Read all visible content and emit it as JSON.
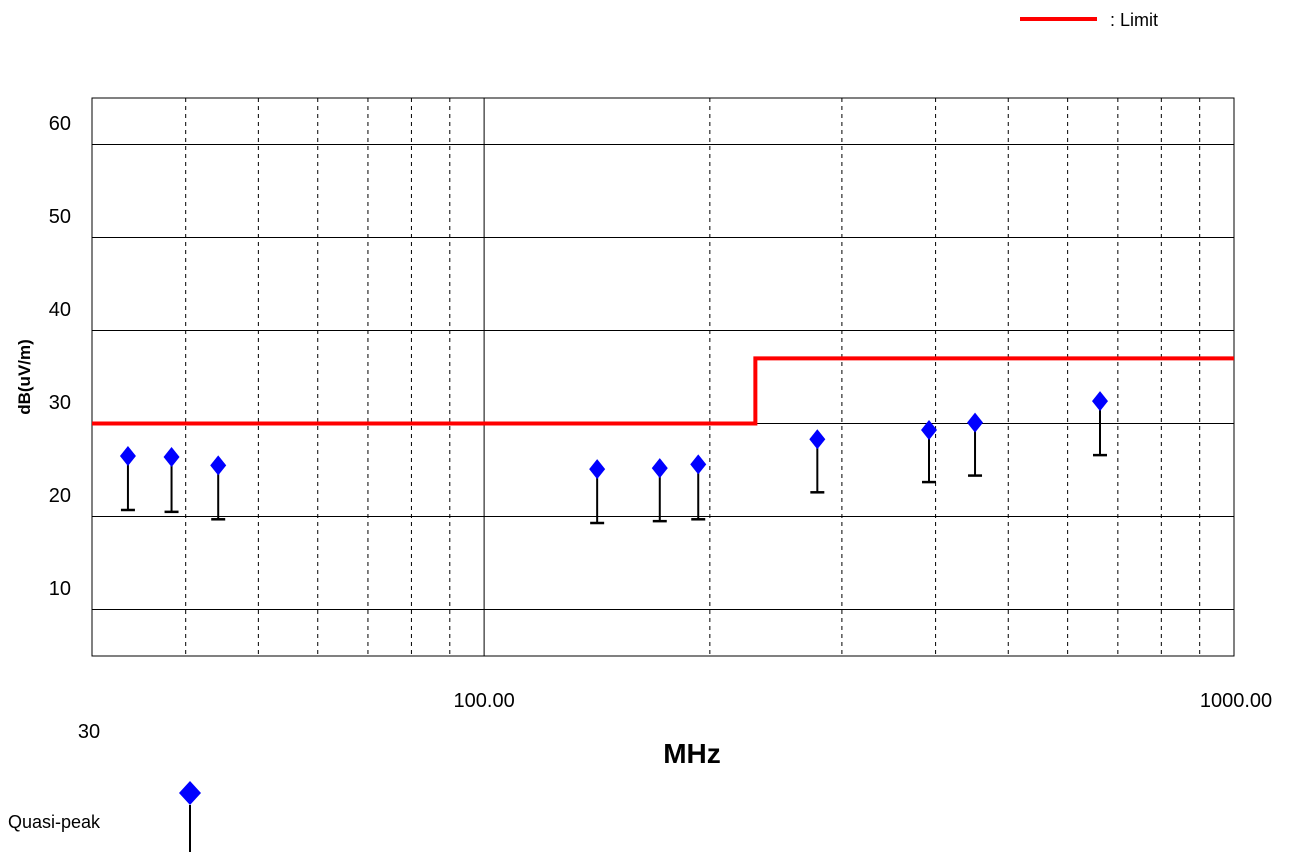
{
  "chart_data": {
    "type": "scatter",
    "ylabel": "dB(uV/m)",
    "xlabel": "MHz",
    "x_scale": "log",
    "xlim": [
      30,
      1000
    ],
    "ylim": [
      5,
      65
    ],
    "grid": true,
    "y_ticks": [
      10,
      20,
      30,
      40,
      50,
      60
    ],
    "x_tick_labels": [
      {
        "value": 30,
        "label": "30"
      },
      {
        "value": 100,
        "label": "100.00"
      },
      {
        "value": 1000,
        "label": "1000.00"
      }
    ],
    "limit": {
      "name": ": Limit",
      "color": "#ff0000",
      "segments": [
        {
          "x": [
            30,
            230
          ],
          "y": 30.0
        },
        {
          "x": [
            230,
            1000
          ],
          "y": 37.0
        }
      ]
    },
    "series": [
      {
        "name": "Quasi-peak",
        "color": "#0000ff",
        "points": [
          {
            "x": 33.5,
            "y": 26.5,
            "low": 20.7
          },
          {
            "x": 38.3,
            "y": 26.4,
            "low": 20.5
          },
          {
            "x": 44.2,
            "y": 25.5,
            "low": 19.7
          },
          {
            "x": 141.5,
            "y": 25.1,
            "low": 19.3
          },
          {
            "x": 171.5,
            "y": 25.2,
            "low": 19.5
          },
          {
            "x": 193.0,
            "y": 25.6,
            "low": 19.7
          },
          {
            "x": 278.2,
            "y": 28.3,
            "low": 22.6
          },
          {
            "x": 392.0,
            "y": 29.3,
            "low": 23.7
          },
          {
            "x": 451.5,
            "y": 30.1,
            "low": 24.4
          },
          {
            "x": 662.7,
            "y": 32.4,
            "low": 26.6
          }
        ]
      }
    ]
  },
  "legend": {
    "limit_label": ": Limit",
    "quasi_peak_label": "Quasi-peak"
  }
}
